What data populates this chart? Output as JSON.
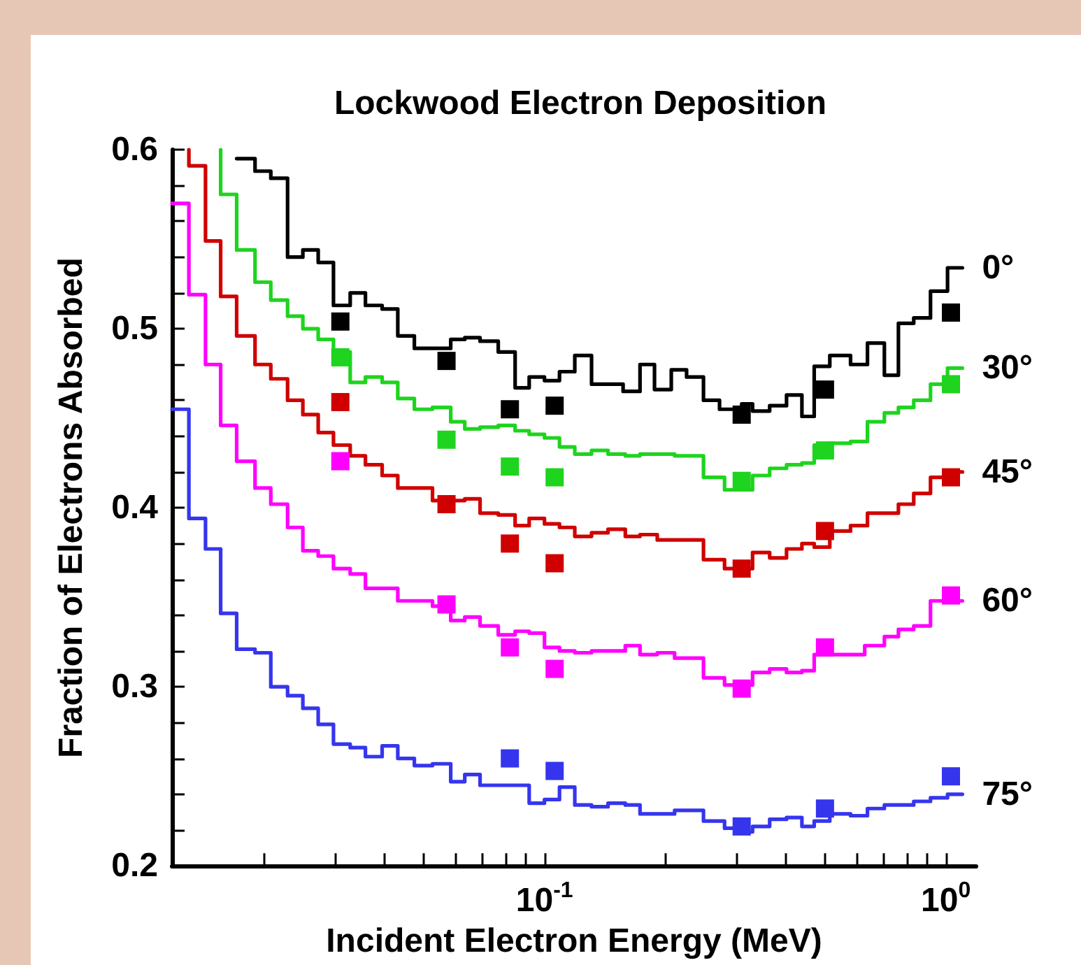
{
  "chart_data": {
    "type": "step",
    "title": "Lockwood Electron Deposition",
    "xlabel": "Incident Electron Energy (MeV)",
    "ylabel": "Fraction of Electrons Absorbed",
    "log": "x",
    "grid": false,
    "legend": false,
    "xlim": [
      0.0118,
      1.19
    ],
    "ylim": [
      0.2,
      0.6
    ],
    "xticks": [
      {
        "value": 0.02,
        "label": null
      },
      {
        "value": 0.03,
        "label": null
      },
      {
        "value": 0.04,
        "label": null
      },
      {
        "value": 0.05,
        "label": null
      },
      {
        "value": 0.06,
        "label": null
      },
      {
        "value": 0.07,
        "label": null
      },
      {
        "value": 0.08,
        "label": null
      },
      {
        "value": 0.09,
        "label": null
      },
      {
        "value": 0.1,
        "label": "10$^{-1}$"
      },
      {
        "value": 0.2,
        "label": null
      },
      {
        "value": 0.3,
        "label": null
      },
      {
        "value": 0.4,
        "label": null
      },
      {
        "value": 0.5,
        "label": null
      },
      {
        "value": 0.6,
        "label": null
      },
      {
        "value": 0.7,
        "label": null
      },
      {
        "value": 0.8,
        "label": null
      },
      {
        "value": 0.9,
        "label": null
      },
      {
        "value": 1,
        "label": "10$^{0}$"
      }
    ],
    "yticks": [
      0.2,
      {
        "value": 0.22,
        "label": null
      },
      {
        "value": 0.24,
        "label": null
      },
      {
        "value": 0.26,
        "label": null
      },
      {
        "value": 0.28,
        "label": null
      },
      0.3,
      {
        "value": 0.32,
        "label": null
      },
      {
        "value": 0.34,
        "label": null
      },
      {
        "value": 0.36,
        "label": null
      },
      {
        "value": 0.38,
        "label": null
      },
      0.4,
      {
        "value": 0.42,
        "label": null
      },
      {
        "value": 0.44,
        "label": null
      },
      {
        "value": 0.46,
        "label": null
      },
      {
        "value": 0.48,
        "label": null
      },
      0.5,
      {
        "value": 0.52,
        "label": null
      },
      {
        "value": 0.54,
        "label": null
      },
      {
        "value": 0.56,
        "label": null
      },
      {
        "value": 0.58,
        "label": null
      },
      0.6
    ],
    "series": [
      {
        "name": "0°",
        "color": "#000000",
        "x": [
          0.0171,
          0.019,
          0.0208,
          0.0229,
          0.025,
          0.0273,
          0.0298,
          0.0328,
          0.0358,
          0.0394,
          0.0431,
          0.0474,
          0.0584,
          0.0633,
          0.0691,
          0.0767,
          0.0845,
          0.0916,
          0.1,
          0.109,
          0.119,
          0.131,
          0.144,
          0.157,
          0.173,
          0.188,
          0.207,
          0.226,
          0.249,
          0.273,
          0.31,
          0.33,
          0.364,
          0.401,
          0.438,
          0.47,
          0.514,
          0.579,
          0.638,
          0.703,
          0.762,
          0.832,
          0.916,
          1.01,
          1.1
        ],
        "values": [
          0.595,
          0.595,
          0.588,
          0.584,
          0.54,
          0.544,
          0.537,
          0.513,
          0.52,
          0.513,
          0.511,
          0.496,
          0.489,
          0.494,
          0.495,
          0.493,
          0.487,
          0.467,
          0.473,
          0.471,
          0.476,
          0.485,
          0.469,
          0.469,
          0.465,
          0.48,
          0.466,
          0.477,
          0.473,
          0.46,
          0.455,
          0.458,
          0.454,
          0.457,
          0.463,
          0.451,
          0.479,
          0.485,
          0.48,
          0.492,
          0.474,
          0.503,
          0.506,
          0.521,
          0.534
        ]
      },
      {
        "name": "30°",
        "color": "#1ed41e",
        "x": [
          0.0156,
          0.0171,
          0.019,
          0.0208,
          0.0229,
          0.025,
          0.0273,
          0.0298,
          0.0328,
          0.0358,
          0.0394,
          0.0431,
          0.0474,
          0.0526,
          0.0584,
          0.0633,
          0.0691,
          0.0767,
          0.0845,
          0.0916,
          0.1,
          0.109,
          0.119,
          0.131,
          0.144,
          0.159,
          0.173,
          0.211,
          0.249,
          0.281,
          0.33,
          0.364,
          0.401,
          0.438,
          0.47,
          0.514,
          0.579,
          0.638,
          0.703,
          0.762,
          0.832,
          0.916,
          1.01,
          1.1
        ],
        "values": [
          0.6,
          0.575,
          0.544,
          0.526,
          0.516,
          0.507,
          0.5,
          0.494,
          0.487,
          0.47,
          0.473,
          0.47,
          0.461,
          0.455,
          0.456,
          0.448,
          0.444,
          0.445,
          0.446,
          0.443,
          0.441,
          0.439,
          0.434,
          0.43,
          0.432,
          0.43,
          0.429,
          0.43,
          0.429,
          0.417,
          0.41,
          0.418,
          0.422,
          0.424,
          0.425,
          0.435,
          0.436,
          0.437,
          0.448,
          0.453,
          0.456,
          0.46,
          0.469,
          0.478
        ]
      },
      {
        "name": "45°",
        "color": "#d00000",
        "x": [
          0.013,
          0.0143,
          0.0156,
          0.0171,
          0.019,
          0.0208,
          0.0229,
          0.025,
          0.0273,
          0.0298,
          0.0328,
          0.0358,
          0.0394,
          0.0431,
          0.0526,
          0.0584,
          0.0633,
          0.0691,
          0.0767,
          0.0845,
          0.0916,
          0.1,
          0.109,
          0.119,
          0.131,
          0.144,
          0.159,
          0.173,
          0.191,
          0.249,
          0.281,
          0.33,
          0.364,
          0.401,
          0.438,
          0.47,
          0.514,
          0.579,
          0.638,
          0.703,
          0.762,
          0.832,
          0.916,
          1.01,
          1.1
        ],
        "values": [
          0.6,
          0.591,
          0.549,
          0.518,
          0.496,
          0.48,
          0.472,
          0.46,
          0.452,
          0.442,
          0.435,
          0.429,
          0.424,
          0.418,
          0.411,
          0.404,
          0.404,
          0.405,
          0.397,
          0.396,
          0.39,
          0.394,
          0.391,
          0.389,
          0.384,
          0.386,
          0.388,
          0.384,
          0.385,
          0.382,
          0.371,
          0.366,
          0.375,
          0.372,
          0.377,
          0.38,
          0.378,
          0.387,
          0.39,
          0.397,
          0.397,
          0.402,
          0.408,
          0.417,
          0.42
        ]
      },
      {
        "name": "60°",
        "color": "#ff00ff",
        "x": [
          0.0118,
          0.013,
          0.0143,
          0.0156,
          0.0171,
          0.019,
          0.0208,
          0.0229,
          0.025,
          0.0273,
          0.0298,
          0.0328,
          0.0358,
          0.0431,
          0.0526,
          0.0584,
          0.0633,
          0.0691,
          0.0767,
          0.0845,
          0.0916,
          0.1,
          0.109,
          0.119,
          0.131,
          0.144,
          0.159,
          0.173,
          0.191,
          0.211,
          0.249,
          0.281,
          0.33,
          0.364,
          0.401,
          0.438,
          0.47,
          0.628,
          0.703,
          0.762,
          0.832,
          0.916,
          1.01,
          1.1
        ],
        "values": [
          0.57,
          0.57,
          0.519,
          0.48,
          0.446,
          0.426,
          0.411,
          0.402,
          0.389,
          0.376,
          0.373,
          0.366,
          0.363,
          0.355,
          0.348,
          0.345,
          0.337,
          0.339,
          0.334,
          0.329,
          0.331,
          0.33,
          0.322,
          0.32,
          0.319,
          0.32,
          0.32,
          0.323,
          0.318,
          0.319,
          0.316,
          0.305,
          0.301,
          0.308,
          0.31,
          0.308,
          0.309,
          0.318,
          0.323,
          0.328,
          0.332,
          0.334,
          0.348,
          0.348
        ]
      },
      {
        "name": "75°",
        "color": "#3535ee",
        "x": [
          0.0118,
          0.013,
          0.0143,
          0.0156,
          0.0171,
          0.019,
          0.0208,
          0.0229,
          0.025,
          0.0273,
          0.0298,
          0.0328,
          0.0358,
          0.0394,
          0.0431,
          0.0474,
          0.0526,
          0.0584,
          0.0633,
          0.0691,
          0.0916,
          0.1,
          0.109,
          0.119,
          0.131,
          0.144,
          0.159,
          0.173,
          0.211,
          0.249,
          0.281,
          0.31,
          0.33,
          0.364,
          0.401,
          0.438,
          0.47,
          0.514,
          0.579,
          0.638,
          0.703,
          0.832,
          0.916,
          1.01,
          1.1
        ],
        "values": [
          0.455,
          0.455,
          0.394,
          0.377,
          0.341,
          0.321,
          0.319,
          0.3,
          0.295,
          0.288,
          0.279,
          0.268,
          0.266,
          0.261,
          0.267,
          0.26,
          0.256,
          0.257,
          0.247,
          0.251,
          0.245,
          0.235,
          0.237,
          0.244,
          0.234,
          0.233,
          0.235,
          0.234,
          0.229,
          0.231,
          0.225,
          0.221,
          0.219,
          0.222,
          0.226,
          0.227,
          0.222,
          0.225,
          0.229,
          0.228,
          0.232,
          0.234,
          0.236,
          0.238,
          0.24
        ]
      },
      {
        "type": "scatter",
        "marker": "square",
        "color": "#000000",
        "x": [
          0.031,
          0.057,
          0.082,
          0.106,
          0.31,
          0.5,
          1.03
        ],
        "values": [
          0.504,
          0.482,
          0.455,
          0.457,
          0.452,
          0.466,
          0.509
        ]
      },
      {
        "type": "scatter",
        "marker": "square",
        "color": "#1ed41e",
        "x": [
          0.031,
          0.057,
          0.082,
          0.106,
          0.31,
          0.5,
          1.03
        ],
        "values": [
          0.484,
          0.438,
          0.423,
          0.417,
          0.415,
          0.432,
          0.469
        ]
      },
      {
        "type": "scatter",
        "marker": "square",
        "color": "#d00000",
        "x": [
          0.031,
          0.057,
          0.082,
          0.106,
          0.31,
          0.5,
          1.03
        ],
        "values": [
          0.459,
          0.402,
          0.38,
          0.369,
          0.366,
          0.387,
          0.417
        ]
      },
      {
        "type": "scatter",
        "marker": "square",
        "color": "#ff00ff",
        "x": [
          0.031,
          0.057,
          0.082,
          0.106,
          0.31,
          0.5,
          1.03
        ],
        "values": [
          0.426,
          0.346,
          0.322,
          0.31,
          0.299,
          0.322,
          0.351
        ]
      },
      {
        "type": "scatter",
        "marker": "square",
        "color": "#3535ee",
        "x": [
          0.082,
          0.106,
          0.31,
          0.5,
          1.03
        ],
        "values": [
          0.26,
          0.253,
          0.222,
          0.232,
          0.25
        ]
      }
    ]
  }
}
